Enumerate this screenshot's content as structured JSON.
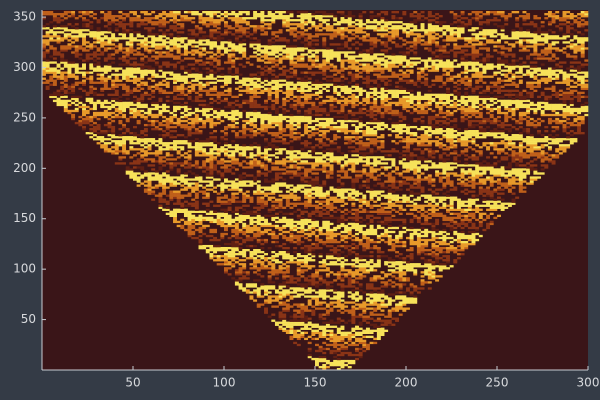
{
  "chart_data": {
    "type": "heatmap",
    "xlim": [
      0,
      300
    ],
    "ylim": [
      0,
      357
    ],
    "xticks": [
      50,
      100,
      150,
      200,
      250,
      300
    ],
    "yticks": [
      50,
      100,
      150,
      200,
      250,
      300,
      350
    ],
    "background": "#3a1518",
    "colors": [
      "#5e1f14",
      "#8a3416",
      "#c0601a",
      "#e89a2a",
      "#f7e25a"
    ]
  }
}
